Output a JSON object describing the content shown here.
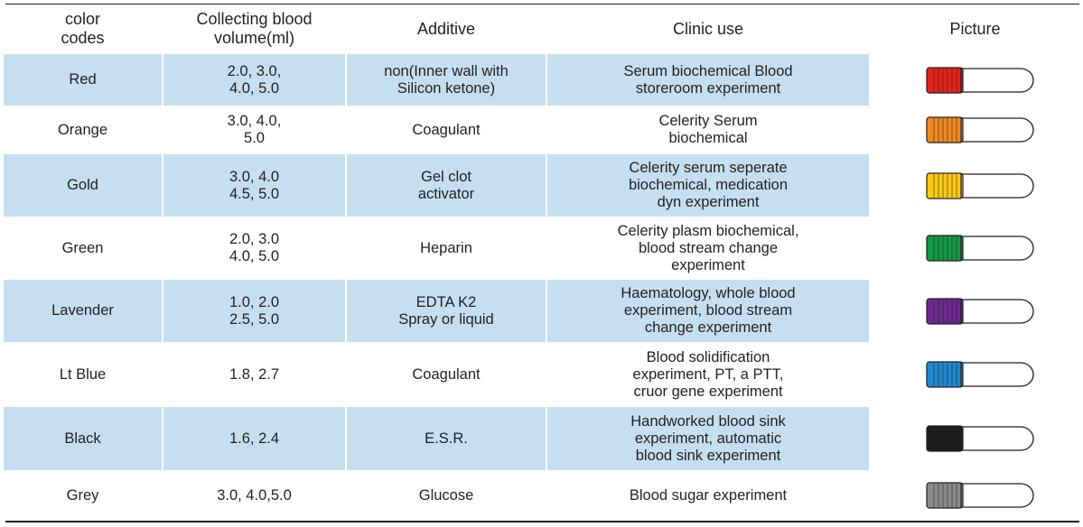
{
  "headers": {
    "color_codes": "color\ncodes",
    "volume": "Collecting blood\nvolume(ml)",
    "additive": "Additive",
    "clinic_use": "Clinic use",
    "picture": "Picture"
  },
  "rows": [
    {
      "color": "Red",
      "volume": "2.0,  3.0,\n4.0,  5.0",
      "additive": "non(Inner  wall with\nSilicon ketone)",
      "clinic_use": "Serum biochemical Blood\nstoreroom experiment",
      "cap_color": "#e2231a"
    },
    {
      "color": "Orange",
      "volume": "3.0,  4.0,\n5.0",
      "additive": "Coagulant",
      "clinic_use": "Celerity Serum\nbiochemical",
      "cap_color": "#f18a21"
    },
    {
      "color": "Gold",
      "volume": "3.0,  4.0\n4.5,  5.0",
      "additive": "Gel clot\nactivator",
      "clinic_use": "Celerity serum seperate\nbiochemical, medication\ndyn experiment",
      "cap_color": "#fcc914"
    },
    {
      "color": "Green",
      "volume": "2.0,  3.0\n4.0,  5.0",
      "additive": "Heparin",
      "clinic_use": "Celerity plasm biochemical,\nblood  stream change\nexperiment",
      "cap_color": "#139a43"
    },
    {
      "color": "Lavender",
      "volume": "1.0,  2.0\n2.5,  5.0",
      "additive": "EDTA K2\nSpray or liquid",
      "clinic_use": "Haematology, whole blood\nexperiment, blood stream\nchange experiment",
      "cap_color": "#6c2a8f"
    },
    {
      "color": "Lt Blue",
      "volume": "1.8,  2.7",
      "additive": "Coagulant",
      "clinic_use": "Blood solidification\nexperiment, PT, a PTT,\ncruor gene experiment",
      "cap_color": "#1f88d1"
    },
    {
      "color": "Black",
      "volume": "1.6,  2.4",
      "additive": "E.S.R.",
      "clinic_use": "Handworked blood sink\nexperiment, automatic\nblood sink experiment",
      "cap_color": "#1d1d1b"
    },
    {
      "color": "Grey",
      "volume": "3.0, 4.0,5.0",
      "additive": "Glucose",
      "clinic_use": "Blood sugar experiment",
      "cap_color": "#8a8a8a"
    }
  ]
}
